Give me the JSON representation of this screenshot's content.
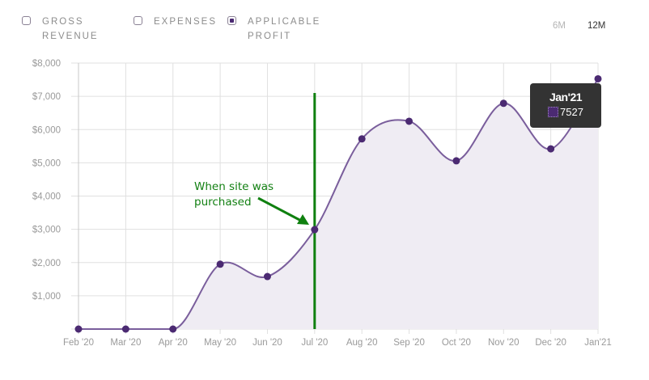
{
  "legend": {
    "items": [
      {
        "label_line1": "GROSS",
        "label_line2": "REVENUE",
        "checked": false
      },
      {
        "label_line1": "EXPENSES",
        "label_line2": "",
        "checked": false
      },
      {
        "label_line1": "APPLICABLE",
        "label_line2": "PROFIT",
        "checked": true
      }
    ]
  },
  "range": {
    "options": [
      "6M",
      "12M"
    ],
    "selected": "12M"
  },
  "tooltip": {
    "title": "Jan'21",
    "value": "7527",
    "swatch_color": "#4b2a72"
  },
  "annotation": {
    "line1": "When site was",
    "line2": "purchased",
    "color": "#138013",
    "marker_category": "Jul '20"
  },
  "colors": {
    "series_line": "#7a5e9c",
    "series_fill": "#efecf3",
    "point": "#4b2a72",
    "grid": "#e0e0e0",
    "axis_label": "#9a9a9a",
    "marker_line": "#0f800f"
  },
  "chart_data": {
    "type": "area",
    "title": "",
    "xlabel": "",
    "ylabel": "",
    "categories": [
      "Feb '20",
      "Mar '20",
      "Apr '20",
      "May '20",
      "Jun '20",
      "Jul '20",
      "Aug '20",
      "Sep '20",
      "Oct '20",
      "Nov '20",
      "Dec '20",
      "Jan'21"
    ],
    "series": [
      {
        "name": "Applicable Profit",
        "values": [
          0,
          0,
          0,
          1950,
          1580,
          2990,
          5720,
          6250,
          5060,
          6790,
          5420,
          7527
        ]
      }
    ],
    "y_ticks": [
      "$1,000",
      "$2,000",
      "$3,000",
      "$4,000",
      "$5,000",
      "$6,000",
      "$7,000",
      "$8,000"
    ],
    "ylim": [
      0,
      8000
    ],
    "grid": true,
    "legend_position": "top-left",
    "annotations": [
      {
        "text": "When site was purchased",
        "x": "Jul '20",
        "type": "vertical-line-with-arrow"
      }
    ],
    "tooltip": {
      "x": "Jan'21",
      "value": 7527
    }
  }
}
